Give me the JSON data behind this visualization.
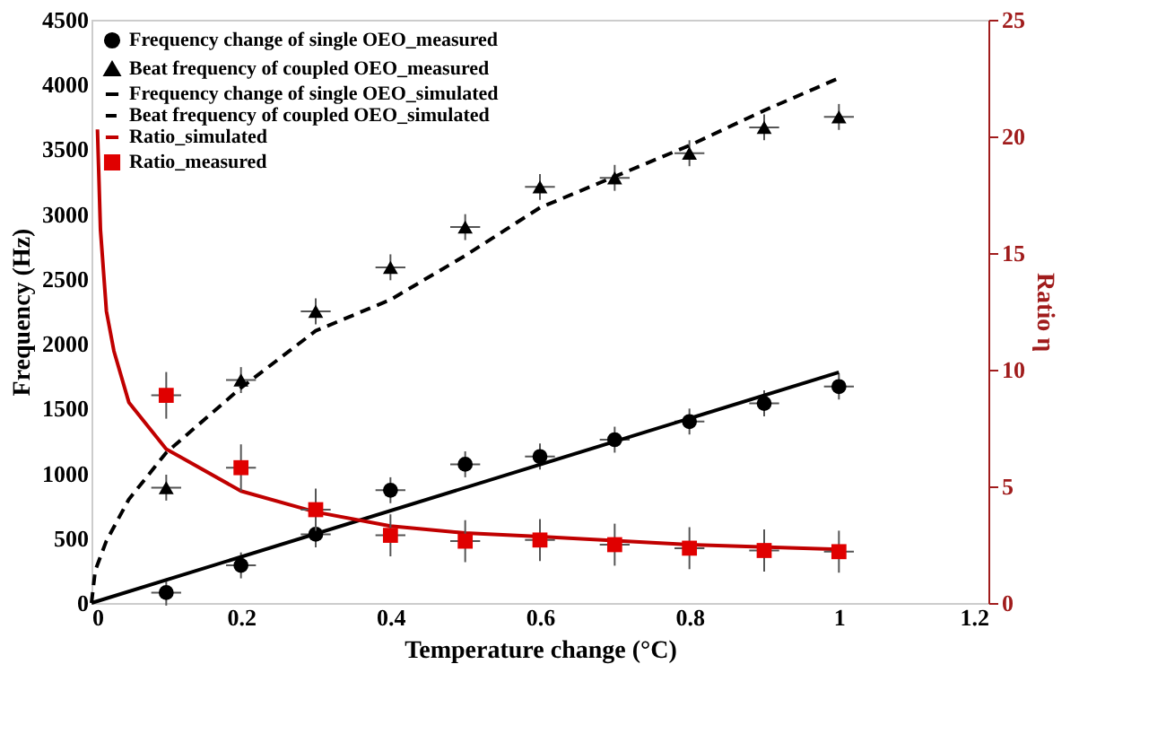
{
  "chart_data": {
    "type": "scatter",
    "xlabel": "Temperature change (°C)",
    "ylabel": "Frequency (Hz)",
    "y2label": "Ratio η",
    "xlim": [
      0,
      1.2
    ],
    "xticks": [
      0,
      0.2,
      0.4,
      0.6,
      0.8,
      1,
      1.2
    ],
    "ylim": [
      0,
      4500
    ],
    "yticks": [
      0,
      500,
      1000,
      1500,
      2000,
      2500,
      3000,
      3500,
      4000,
      4500
    ],
    "y2lim": [
      0,
      25
    ],
    "y2ticks": [
      0,
      5,
      10,
      15,
      20,
      25
    ],
    "grid": false,
    "legend": "top left",
    "series": [
      {
        "name": "Frequency change of single OEO_measured",
        "marker": "circle",
        "color": "#000000",
        "x": [
          0.1,
          0.2,
          0.3,
          0.4,
          0.5,
          0.6,
          0.7,
          0.8,
          0.9,
          1.0
        ],
        "values": [
          80,
          290,
          530,
          870,
          1070,
          1130,
          1260,
          1400,
          1540,
          1670
        ],
        "errors": [
          100,
          100,
          100,
          100,
          100,
          100,
          100,
          100,
          100,
          100
        ],
        "xerrors": [
          0.02,
          0.02,
          0.02,
          0.02,
          0.02,
          0.02,
          0.02,
          0.02,
          0.02,
          0.02
        ]
      },
      {
        "name": "Beat frequency of coupled OEO_measured",
        "marker": "triangle",
        "color": "#000000",
        "x": [
          0.1,
          0.2,
          0.3,
          0.4,
          0.5,
          0.6,
          0.7,
          0.8,
          0.9,
          1.0
        ],
        "values": [
          890,
          1720,
          2250,
          2590,
          2900,
          3210,
          3280,
          3470,
          3670,
          3750
        ],
        "errors": [
          100,
          100,
          100,
          100,
          100,
          100,
          100,
          100,
          100,
          100
        ],
        "xerrors": [
          0.02,
          0.02,
          0.02,
          0.02,
          0.02,
          0.02,
          0.02,
          0.02,
          0.02,
          0.02
        ]
      },
      {
        "name": "Frequency change of single OEO_simulated",
        "type": "line",
        "line_style": "solid",
        "color": "#000000",
        "x": [
          0,
          1.0
        ],
        "values": [
          0,
          1780
        ]
      },
      {
        "name": "Beat frequency of coupled OEO_simulated",
        "type": "line",
        "line_style": "dashed",
        "color": "#000000",
        "x": [
          0,
          0.005,
          0.02,
          0.05,
          0.1,
          0.2,
          0.3,
          0.4,
          0.5,
          0.6,
          0.7,
          0.8,
          0.9,
          1.0
        ],
        "values": [
          0,
          250,
          480,
          800,
          1160,
          1660,
          2100,
          2340,
          2680,
          3050,
          3290,
          3530,
          3800,
          4050
        ]
      },
      {
        "name": "Ratio_simulated",
        "type": "line",
        "line_style": "solid",
        "axis": "y2",
        "color": "#c00000",
        "x": [
          0.008,
          0.012,
          0.02,
          0.03,
          0.05,
          0.1,
          0.2,
          0.3,
          0.4,
          0.5,
          0.6,
          0.8,
          1.0
        ],
        "values": [
          20.3,
          16,
          12.5,
          10.8,
          8.6,
          6.6,
          4.8,
          3.9,
          3.3,
          3.0,
          2.85,
          2.5,
          2.3
        ]
      },
      {
        "name": "Ratio_measured",
        "marker": "square",
        "axis": "y2",
        "color": "#e00000",
        "x": [
          0.1,
          0.2,
          0.3,
          0.4,
          0.5,
          0.6,
          0.7,
          0.8,
          0.9,
          1.0
        ],
        "values": [
          8.9,
          5.8,
          4.0,
          2.9,
          2.65,
          2.7,
          2.5,
          2.35,
          2.25,
          2.2
        ],
        "errors": [
          1.0,
          1.0,
          0.9,
          0.9,
          0.9,
          0.9,
          0.9,
          0.9,
          0.9,
          0.9
        ],
        "xerrors": [
          0.02,
          0.02,
          0.02,
          0.02,
          0.02,
          0.02,
          0.02,
          0.02,
          0.02,
          0.02
        ]
      }
    ]
  }
}
